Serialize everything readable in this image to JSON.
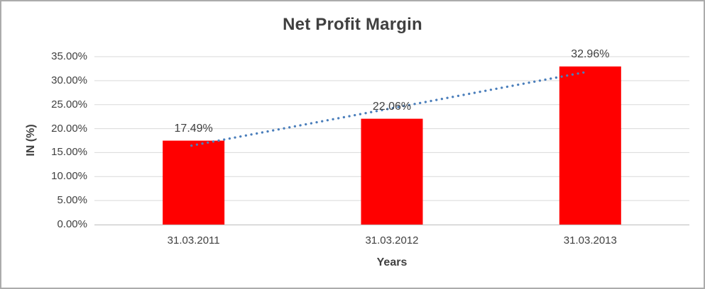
{
  "chart_data": {
    "type": "bar",
    "title": "Net Profit Margin",
    "xlabel": "Years",
    "ylabel": "IN (%)",
    "categories": [
      "31.03.2011",
      "31.03.2012",
      "31.03.2013"
    ],
    "series": [
      {
        "name": "Net Profit Margin",
        "values": [
          17.49,
          22.06,
          32.96
        ]
      }
    ],
    "data_labels": [
      "17.49%",
      "22.06%",
      "32.96%"
    ],
    "y_tick_labels": [
      "0.00%",
      "5.00%",
      "10.00%",
      "15.00%",
      "20.00%",
      "25.00%",
      "30.00%",
      "35.00%"
    ],
    "ylim": [
      0,
      35
    ],
    "grid": true,
    "legend": "none",
    "colors": {
      "bar": "#ff0000",
      "gridline": "#d9d9d9",
      "axis_line": "#c6c6c6",
      "text": "#404040",
      "trendline": "#4a7ebb"
    },
    "trendline": {
      "type": "linear",
      "style": "dotted",
      "endpoints_pct": [
        16.45,
        31.85
      ]
    }
  }
}
